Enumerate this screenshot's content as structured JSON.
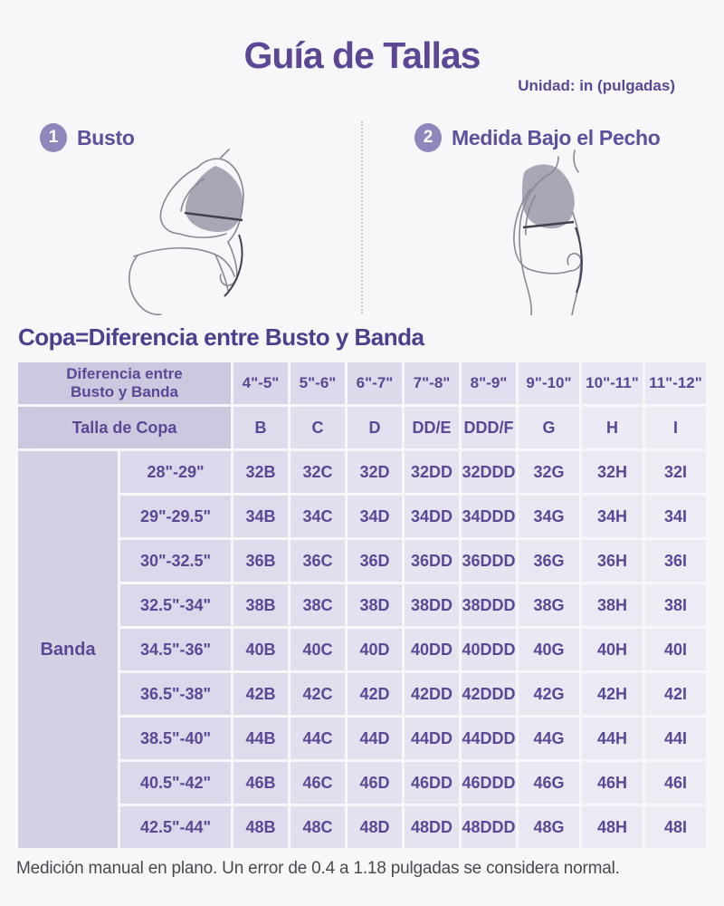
{
  "header": {
    "title": "Guía de Tallas",
    "unit_note": "Unidad: in (pulgadas)"
  },
  "steps": [
    {
      "number": "1",
      "label": "Busto"
    },
    {
      "number": "2",
      "label": "Medida Bajo el Pecho"
    }
  ],
  "section_heading": "Copa=Diferencia entre Busto y Banda",
  "table": {
    "corner_header_line1": "Diferencia entre",
    "corner_header_line2": "Busto y Banda",
    "diff_ranges": [
      "4\"-5\"",
      "5\"-6\"",
      "6\"-7\"",
      "7\"-8\"",
      "8\"-9\"",
      "9\"-10\"",
      "10\"-11\"",
      "11\"-12\""
    ],
    "cup_label": "Talla de Copa",
    "cup_sizes": [
      "B",
      "C",
      "D",
      "DD/E",
      "DDD/F",
      "G",
      "H",
      "I"
    ],
    "band_label": "Banda",
    "rows": [
      {
        "band": "28\"-29\"",
        "sizes": [
          "32B",
          "32C",
          "32D",
          "32DD",
          "32DDD",
          "32G",
          "32H",
          "32I"
        ]
      },
      {
        "band": "29\"-29.5\"",
        "sizes": [
          "34B",
          "34C",
          "34D",
          "34DD",
          "34DDD",
          "34G",
          "34H",
          "34I"
        ]
      },
      {
        "band": "30\"-32.5\"",
        "sizes": [
          "36B",
          "36C",
          "36D",
          "36DD",
          "36DDD",
          "36G",
          "36H",
          "36I"
        ]
      },
      {
        "band": "32.5\"-34\"",
        "sizes": [
          "38B",
          "38C",
          "38D",
          "38DD",
          "38DDD",
          "38G",
          "38H",
          "38I"
        ]
      },
      {
        "band": "34.5\"-36\"",
        "sizes": [
          "40B",
          "40C",
          "40D",
          "40DD",
          "40DDD",
          "40G",
          "40H",
          "40I"
        ]
      },
      {
        "band": "36.5\"-38\"",
        "sizes": [
          "42B",
          "42C",
          "42D",
          "42DD",
          "42DDD",
          "42G",
          "42H",
          "42I"
        ]
      },
      {
        "band": "38.5\"-40\"",
        "sizes": [
          "44B",
          "44C",
          "44D",
          "44DD",
          "44DDD",
          "44G",
          "44H",
          "44I"
        ]
      },
      {
        "band": "40.5\"-42\"",
        "sizes": [
          "46B",
          "46C",
          "46D",
          "46DD",
          "46DDD",
          "46G",
          "46H",
          "46I"
        ]
      },
      {
        "band": "42.5\"-44\"",
        "sizes": [
          "48B",
          "48C",
          "48D",
          "48DD",
          "48DDD",
          "48G",
          "48H",
          "48I"
        ]
      }
    ]
  },
  "footer_note": "Medición manual en plano. Un error de 0.4 a 1.18 pulgadas se considera normal.",
  "colors": {
    "accent_purple": "#5b4795",
    "heading_purple": "#4f3e8e",
    "step_label_purple": "#5f4f9c",
    "table_text": "#5b4895",
    "step_badge_bg": "#9186bb",
    "footer_text": "#4b4950",
    "corner_bg": "#cdc7df",
    "band_col_bg": "#d6d0e4",
    "range_col_bg": "#dcd7ea",
    "header_tints": [
      "#d9d4e8",
      "#dcd7ea",
      "#ded9eb",
      "#e0dcee",
      "#e2deef",
      "#e7e4f1",
      "#e9e6f3",
      "#ebe8f4"
    ],
    "column_tints": [
      "#dfdbec",
      "#e2deee",
      "#e4e0ef",
      "#e6e2f0",
      "#e7e3f1",
      "#eae7f3",
      "#ece9f4",
      "#eeebf5"
    ]
  }
}
